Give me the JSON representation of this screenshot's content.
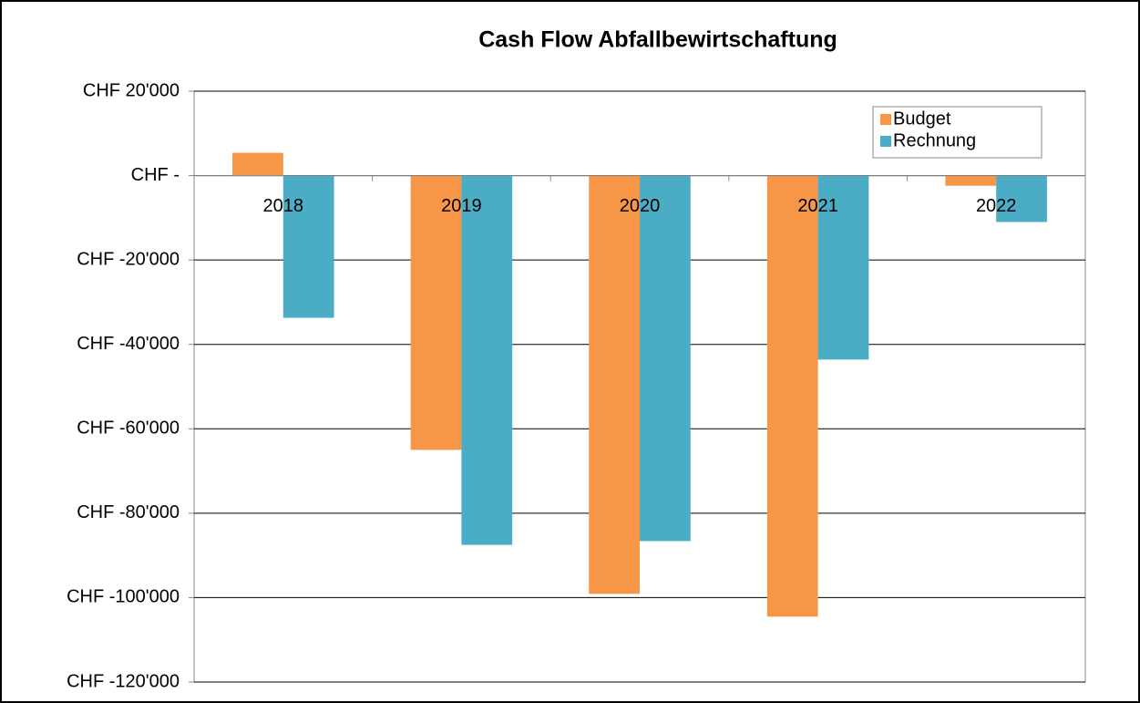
{
  "chart_data": {
    "type": "bar",
    "title": "Cash Flow Abfallbewirtschaftung",
    "categories": [
      "2018",
      "2019",
      "2020",
      "2021",
      "2022"
    ],
    "series": [
      {
        "name": "Budget",
        "color": "#f79646",
        "values": [
          5400,
          -65000,
          -99100,
          -104500,
          -2400
        ]
      },
      {
        "name": "Rechnung",
        "color": "#4bacc6",
        "values": [
          -33700,
          -87500,
          -86600,
          -43600,
          -11000
        ]
      }
    ],
    "ylim": [
      -120000,
      20000
    ],
    "yticks": [
      {
        "value": -120000,
        "label": "CHF -120'000"
      },
      {
        "value": -100000,
        "label": "CHF -100'000"
      },
      {
        "value": -80000,
        "label": "CHF -80'000"
      },
      {
        "value": -60000,
        "label": "CHF -60'000"
      },
      {
        "value": -40000,
        "label": "CHF -40'000"
      },
      {
        "value": -20000,
        "label": "CHF -20'000"
      },
      {
        "value": 0,
        "label": "CHF -"
      },
      {
        "value": 20000,
        "label": "CHF 20'000"
      }
    ],
    "grid": true,
    "legend": "top-right"
  }
}
